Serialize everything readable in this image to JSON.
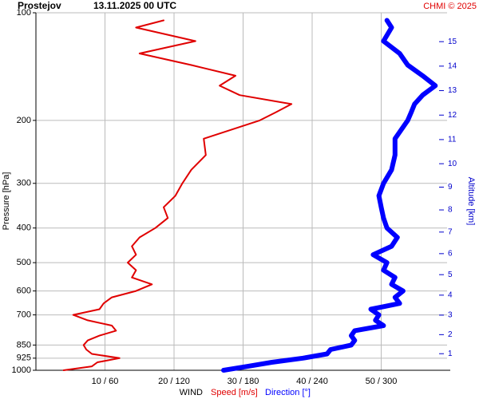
{
  "chart_data": {
    "type": "line",
    "title": "Prostejov",
    "subtitle": "13.11.2025 00 UTC",
    "source": "CHMI © 2025",
    "ylabel": "Pressure [hPa]",
    "y2label": "Altitude [km]",
    "xlabel": "WIND",
    "ylog": true,
    "ylim": [
      1000,
      100
    ],
    "yticks": [
      100,
      200,
      300,
      400,
      500,
      600,
      700,
      850,
      925,
      1000
    ],
    "y2ticks": [
      1,
      2,
      3,
      4,
      5,
      6,
      7,
      8,
      9,
      10,
      11,
      12,
      13,
      14,
      15
    ],
    "xlim": [
      0,
      60
    ],
    "x2lim": [
      0,
      360
    ],
    "xticks": [
      {
        "value": 10,
        "label": "10 / 60"
      },
      {
        "value": 20,
        "label": "20 / 120"
      },
      {
        "value": 30,
        "label": "30 / 180"
      },
      {
        "value": 40,
        "label": "40 / 240"
      },
      {
        "value": 50,
        "label": "50 / 300"
      }
    ],
    "grid": true,
    "y": [
      1000,
      975,
      950,
      925,
      900,
      875,
      850,
      825,
      800,
      775,
      750,
      725,
      700,
      675,
      650,
      625,
      600,
      575,
      550,
      525,
      500,
      475,
      450,
      425,
      400,
      375,
      350,
      325,
      300,
      275,
      250,
      225,
      200,
      190,
      180,
      170,
      160,
      150,
      140,
      130,
      120,
      110,
      105
    ],
    "series": [
      {
        "name": "Speed [m/s]",
        "color": "#e00000",
        "values": [
          4.0,
          8.1,
          8.9,
          12.1,
          8.1,
          7.3,
          6.9,
          7.5,
          9.2,
          11.6,
          11.0,
          7.5,
          5.4,
          9.2,
          9.8,
          11.0,
          14.5,
          16.8,
          13.9,
          14.5,
          13.3,
          14.5,
          13.9,
          15.0,
          17.3,
          19.1,
          18.5,
          20.2,
          21.2,
          22.5,
          24.6,
          24.3,
          32.4,
          34.7,
          37.0,
          29.5,
          26.6,
          28.9,
          22.5,
          15.0,
          23.1,
          14.5,
          18.5
        ]
      },
      {
        "name": "Direction [°]",
        "color": "#0000ff",
        "axis": "x2",
        "values": [
          163,
          184,
          205,
          232,
          253,
          256,
          274,
          277,
          274,
          277,
          302,
          295,
          298,
          291,
          316,
          312,
          319,
          309,
          312,
          302,
          305,
          293,
          309,
          314,
          305,
          302,
          300,
          298,
          302,
          309,
          312,
          312,
          323,
          326,
          329,
          336,
          347,
          336,
          323,
          316,
          302,
          309,
          305
        ]
      }
    ]
  }
}
